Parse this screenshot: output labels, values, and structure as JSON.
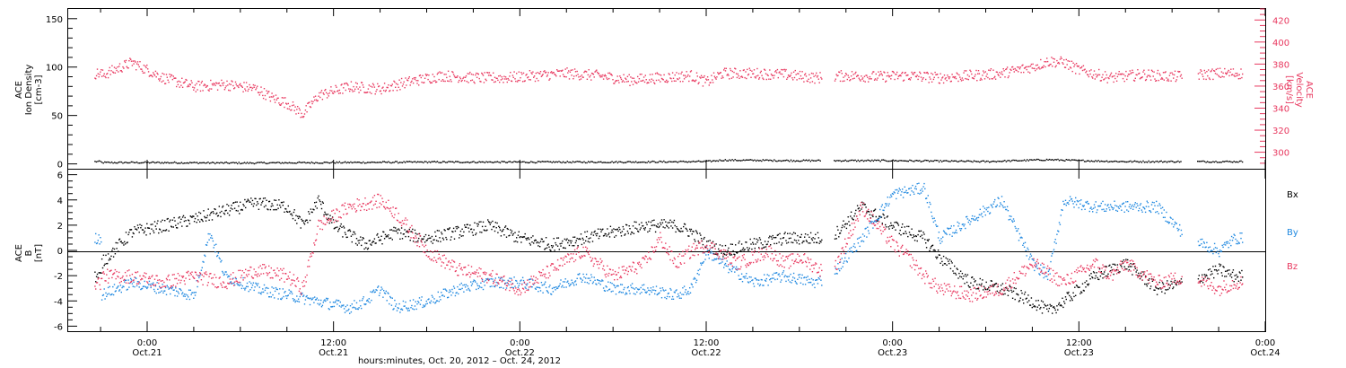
{
  "colors": {
    "black": "#000000",
    "red": "#e8385f",
    "blue": "#1f88e0"
  },
  "chart_data": [
    {
      "type": "scatter",
      "panel": "ion-density-velocity",
      "ylabel_left": [
        "ACE",
        "Ion Density",
        "[cm-3]"
      ],
      "ylabel_right": [
        "ACE",
        "Velocity",
        "[km/s]"
      ],
      "ylim_left": [
        -5,
        160
      ],
      "ylim_right": [
        285,
        430
      ],
      "yticks_left": [
        "0",
        "50",
        "100",
        "150"
      ],
      "yticks_right": [
        "300",
        "320",
        "340",
        "360",
        "380",
        "400",
        "420"
      ],
      "xlim_hours": [
        -3.5,
        72
      ],
      "series": [
        {
          "axis": "left",
          "color": "#000000",
          "points": [
            [
              -3,
              2
            ],
            [
              0,
              2
            ],
            [
              6,
              1.5
            ],
            [
              12,
              2
            ],
            [
              18,
              2.5
            ],
            [
              24,
              2.5
            ],
            [
              30,
              2.5
            ],
            [
              36,
              3
            ],
            [
              37,
              4.5
            ],
            [
              42,
              4
            ],
            [
              48,
              4
            ],
            [
              54,
              3
            ],
            [
              58,
              5
            ],
            [
              60,
              4
            ],
            [
              63,
              3
            ],
            [
              66,
              3
            ],
            [
              70,
              3
            ]
          ]
        },
        {
          "axis": "right",
          "color": "#e8385f",
          "points": [
            [
              -3,
              370
            ],
            [
              -1,
              382
            ],
            [
              1,
              368
            ],
            [
              3,
              360
            ],
            [
              5,
              362
            ],
            [
              7,
              358
            ],
            [
              8,
              350
            ],
            [
              9,
              345
            ],
            [
              10,
              335
            ],
            [
              11,
              352
            ],
            [
              13,
              360
            ],
            [
              15,
              358
            ],
            [
              17,
              365
            ],
            [
              19,
              370
            ],
            [
              21,
              368
            ],
            [
              23,
              368
            ],
            [
              25,
              370
            ],
            [
              27,
              372
            ],
            [
              29,
              370
            ],
            [
              31,
              366
            ],
            [
              33,
              368
            ],
            [
              35,
              370
            ],
            [
              36,
              364
            ],
            [
              37,
              372
            ],
            [
              39,
              372
            ],
            [
              41,
              371
            ],
            [
              43,
              368
            ],
            [
              45,
              370
            ],
            [
              47,
              369
            ],
            [
              49,
              370
            ],
            [
              51,
              368
            ],
            [
              53,
              370
            ],
            [
              55,
              372
            ],
            [
              57,
              378
            ],
            [
              58,
              383
            ],
            [
              59,
              382
            ],
            [
              60,
              375
            ],
            [
              62,
              368
            ],
            [
              64,
              371
            ],
            [
              66,
              369
            ],
            [
              69,
              372
            ],
            [
              72,
              372
            ]
          ]
        }
      ]
    },
    {
      "type": "scatter",
      "panel": "magnetic-field",
      "ylabel": [
        "ACE",
        "B",
        "[nT]"
      ],
      "ylim": [
        -6.4,
        6.4
      ],
      "yticks": [
        "-6",
        "-4",
        "-2",
        "0",
        "2",
        "4",
        "6"
      ],
      "legend": [
        "Bx",
        "By",
        "Bz"
      ],
      "legend_placement": "right",
      "series": [
        {
          "name": "Bx",
          "color": "#000000",
          "points": [
            [
              -3,
              -1
            ],
            [
              -1,
              1.5
            ],
            [
              1,
              2
            ],
            [
              3,
              2.5
            ],
            [
              5,
              3.2
            ],
            [
              7,
              3.8
            ],
            [
              9,
              3.5
            ],
            [
              10,
              2
            ],
            [
              11,
              4
            ],
            [
              12,
              2
            ],
            [
              14,
              0.5
            ],
            [
              16,
              1.5
            ],
            [
              18,
              1
            ],
            [
              20,
              1.5
            ],
            [
              22,
              2
            ],
            [
              24,
              1
            ],
            [
              26,
              0.5
            ],
            [
              28,
              1
            ],
            [
              30,
              1.5
            ],
            [
              32,
              2
            ],
            [
              34,
              2
            ],
            [
              35,
              1.5
            ],
            [
              36,
              0.5
            ],
            [
              37,
              0
            ],
            [
              39,
              0.5
            ],
            [
              41,
              1
            ],
            [
              43,
              1
            ],
            [
              44,
              1
            ],
            [
              46,
              3.5
            ],
            [
              48,
              2
            ],
            [
              50,
              1
            ],
            [
              51,
              -0.5
            ],
            [
              53,
              -2.5
            ],
            [
              55,
              -3
            ],
            [
              57,
              -4
            ],
            [
              58,
              -4.8
            ],
            [
              59,
              -4
            ],
            [
              61,
              -2
            ],
            [
              63,
              -1
            ],
            [
              65,
              -3
            ],
            [
              67,
              -2.5
            ],
            [
              69,
              -1.5
            ],
            [
              70,
              -2
            ]
          ]
        },
        {
          "name": "By",
          "color": "#1f88e0",
          "points": [
            [
              -3,
              -3.5
            ],
            [
              -1,
              -2.5
            ],
            [
              1,
              -3
            ],
            [
              3,
              -3.5
            ],
            [
              4,
              1.5
            ],
            [
              5,
              -2
            ],
            [
              7,
              -3
            ],
            [
              9,
              -3.5
            ],
            [
              11,
              -4
            ],
            [
              13,
              -4.5
            ],
            [
              14,
              -4
            ],
            [
              15,
              -3
            ],
            [
              16,
              -4.5
            ],
            [
              18,
              -4
            ],
            [
              20,
              -3
            ],
            [
              22,
              -2.5
            ],
            [
              24,
              -2.5
            ],
            [
              26,
              -3
            ],
            [
              28,
              -2
            ],
            [
              30,
              -3
            ],
            [
              32,
              -3
            ],
            [
              34,
              -3.5
            ],
            [
              35,
              -3
            ],
            [
              36,
              0
            ],
            [
              37,
              -1
            ],
            [
              39,
              -2.5
            ],
            [
              41,
              -2
            ],
            [
              43,
              -2.5
            ],
            [
              44,
              -2
            ],
            [
              46,
              1
            ],
            [
              48,
              4.5
            ],
            [
              50,
              5
            ],
            [
              51,
              1
            ],
            [
              53,
              2.5
            ],
            [
              55,
              4
            ],
            [
              57,
              -1
            ],
            [
              58,
              -2
            ],
            [
              59,
              4
            ],
            [
              61,
              3.5
            ],
            [
              63,
              3.5
            ],
            [
              65,
              3.5
            ],
            [
              67,
              1
            ],
            [
              69,
              0
            ],
            [
              70,
              1
            ]
          ]
        },
        {
          "name": "Bz",
          "color": "#e8385f",
          "points": [
            [
              -3,
              -2
            ],
            [
              -1,
              -2
            ],
            [
              1,
              -2.5
            ],
            [
              3,
              -2
            ],
            [
              5,
              -2.5
            ],
            [
              7,
              -1.5
            ],
            [
              9,
              -2
            ],
            [
              10,
              -3
            ],
            [
              11,
              2
            ],
            [
              13,
              3.5
            ],
            [
              15,
              4
            ],
            [
              16,
              3
            ],
            [
              18,
              0
            ],
            [
              20,
              -1.5
            ],
            [
              22,
              -2
            ],
            [
              24,
              -3
            ],
            [
              26,
              -1.5
            ],
            [
              28,
              0
            ],
            [
              30,
              -2
            ],
            [
              32,
              -1
            ],
            [
              33,
              1
            ],
            [
              34,
              -1
            ],
            [
              35,
              0
            ],
            [
              36,
              0.5
            ],
            [
              38,
              -1
            ],
            [
              40,
              0
            ],
            [
              41,
              -1
            ],
            [
              42,
              -0.5
            ],
            [
              44,
              -2
            ],
            [
              46,
              3.5
            ],
            [
              48,
              0.5
            ],
            [
              49,
              -0.5
            ],
            [
              50,
              -2
            ],
            [
              51,
              -3
            ],
            [
              53,
              -3.5
            ],
            [
              55,
              -3
            ],
            [
              57,
              -1
            ],
            [
              59,
              -2.5
            ],
            [
              61,
              -1
            ],
            [
              62,
              -2
            ],
            [
              63,
              -1
            ],
            [
              65,
              -2.5
            ],
            [
              67,
              -2
            ],
            [
              69,
              -3
            ],
            [
              70,
              -2.5
            ]
          ]
        }
      ]
    }
  ],
  "x_axis": {
    "ticks": [
      {
        "time": "0:00",
        "date": "Oct.21"
      },
      {
        "time": "12:00",
        "date": "Oct.21"
      },
      {
        "time": "0:00",
        "date": "Oct.22"
      },
      {
        "time": "12:00",
        "date": "Oct.22"
      },
      {
        "time": "0:00",
        "date": "Oct.23"
      },
      {
        "time": "12:00",
        "date": "Oct.23"
      },
      {
        "time": "0:00",
        "date": "Oct.24"
      }
    ],
    "title": "hours:minutes, Oct. 20, 2012 – Oct. 24, 2012"
  }
}
